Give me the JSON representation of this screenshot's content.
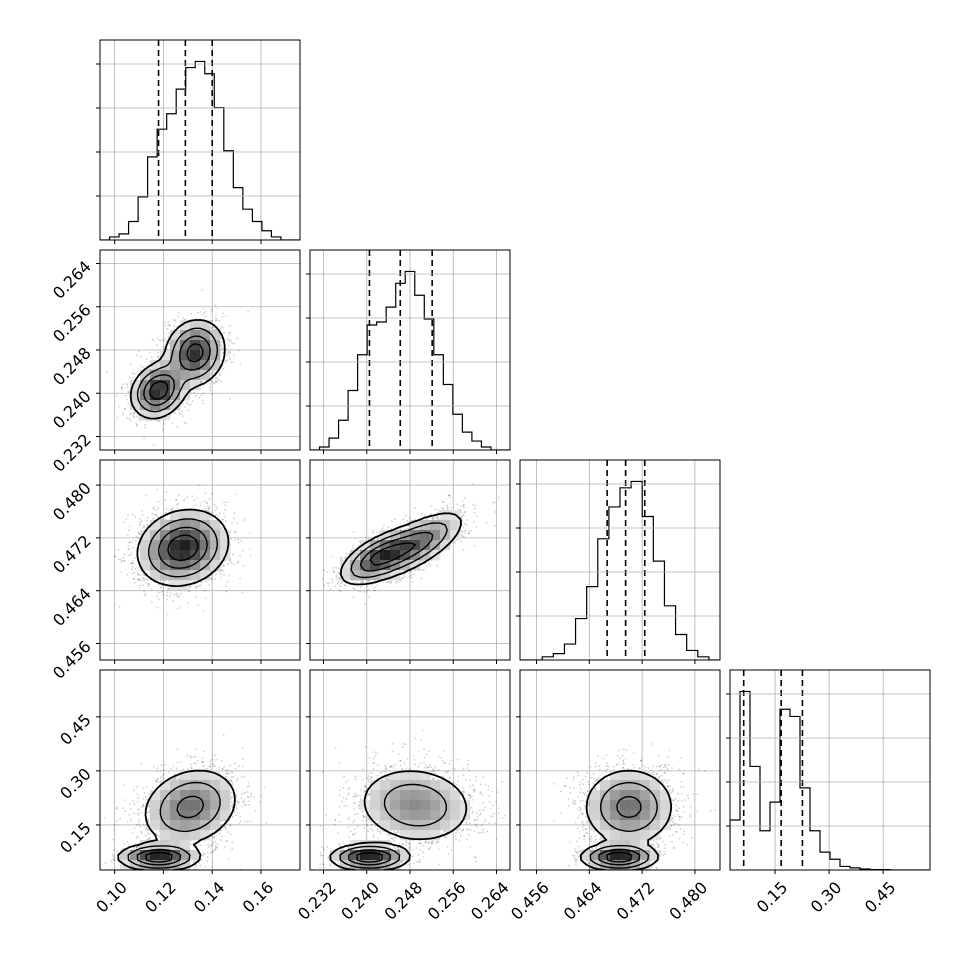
{
  "chart_data": {
    "type": "corner",
    "grid": true,
    "parameters": [
      {
        "axis_ticks": [
          0.1,
          0.12,
          0.14,
          0.16
        ],
        "tick_labels": [
          "0.10",
          "0.12",
          "0.14",
          "0.16"
        ],
        "range": [
          0.094,
          0.176
        ],
        "quantiles": [
          0.118,
          0.129,
          0.14
        ],
        "histogram": [
          0,
          1,
          2,
          6,
          14,
          27,
          36,
          41,
          49,
          56,
          58,
          54,
          43,
          29,
          17,
          10,
          6,
          3,
          1,
          0,
          0
        ]
      },
      {
        "axis_ticks": [
          0.232,
          0.24,
          0.248,
          0.256,
          0.264
        ],
        "tick_labels": [
          "0.232",
          "0.240",
          "0.248",
          "0.256",
          "0.264"
        ],
        "range": [
          0.2295,
          0.2665
        ],
        "quantiles": [
          0.2405,
          0.2462,
          0.2521
        ],
        "histogram": [
          0,
          1,
          4,
          10,
          20,
          32,
          42,
          43,
          48,
          56,
          60,
          52,
          44,
          32,
          22,
          12,
          6,
          3,
          1,
          0,
          0
        ]
      },
      {
        "axis_ticks": [
          0.456,
          0.464,
          0.472,
          0.48
        ],
        "tick_labels": [
          "0.456",
          "0.464",
          "0.472",
          "0.480"
        ],
        "range": [
          0.4535,
          0.4838
        ],
        "quantiles": [
          0.4667,
          0.4695,
          0.4724
        ],
        "histogram": [
          0,
          0,
          1,
          2,
          5,
          13,
          23,
          38,
          48,
          54,
          56,
          45,
          31,
          17,
          8,
          3,
          1,
          0
        ]
      },
      {
        "axis_ticks": [
          0.15,
          0.3,
          0.45
        ],
        "tick_labels": [
          "0.15",
          "0.30",
          "0.45"
        ],
        "range": [
          0.025,
          0.58
        ],
        "quantiles": [
          0.063,
          0.167,
          0.226
        ],
        "histogram": [
          14,
          50,
          29,
          11,
          19,
          45,
          43,
          23,
          11,
          5,
          3,
          1,
          0.6,
          0.3,
          0.1,
          0.1,
          0,
          0,
          0,
          0
        ]
      }
    ],
    "pairs": [
      {
        "row": 1,
        "col": 0,
        "modes": [
          {
            "x": 0.118,
            "y": 0.2405,
            "sx": 0.0055,
            "sy": 0.0025,
            "r": 0.2,
            "w": 0.45
          },
          {
            "x": 0.133,
            "y": 0.2475,
            "sx": 0.006,
            "sy": 0.003,
            "r": 0.1,
            "w": 0.55
          }
        ]
      },
      {
        "row": 2,
        "col": 0,
        "modes": [
          {
            "x": 0.128,
            "y": 0.4705,
            "sx": 0.009,
            "sy": 0.0028,
            "r": 0.15,
            "w": 1.0
          }
        ]
      },
      {
        "row": 2,
        "col": 1,
        "modes": [
          {
            "x": 0.242,
            "y": 0.469,
            "sx": 0.0035,
            "sy": 0.002,
            "r": 0.6,
            "w": 0.4
          },
          {
            "x": 0.249,
            "y": 0.471,
            "sx": 0.0045,
            "sy": 0.0025,
            "r": 0.7,
            "w": 0.6
          }
        ]
      },
      {
        "row": 3,
        "col": 0,
        "modes": [
          {
            "x": 0.118,
            "y": 0.06,
            "sx": 0.008,
            "sy": 0.018,
            "r": 0.0,
            "w": 0.3
          },
          {
            "x": 0.131,
            "y": 0.2,
            "sx": 0.01,
            "sy": 0.055,
            "r": 0.2,
            "w": 0.7
          }
        ]
      },
      {
        "row": 3,
        "col": 1,
        "modes": [
          {
            "x": 0.2405,
            "y": 0.06,
            "sx": 0.0035,
            "sy": 0.018,
            "r": 0.0,
            "w": 0.3
          },
          {
            "x": 0.249,
            "y": 0.205,
            "sx": 0.0055,
            "sy": 0.055,
            "r": -0.1,
            "w": 0.7
          }
        ]
      },
      {
        "row": 3,
        "col": 2,
        "modes": [
          {
            "x": 0.4685,
            "y": 0.06,
            "sx": 0.0028,
            "sy": 0.018,
            "r": 0.0,
            "w": 0.3
          },
          {
            "x": 0.47,
            "y": 0.2,
            "sx": 0.0035,
            "sy": 0.055,
            "r": 0.0,
            "w": 0.7
          }
        ]
      }
    ]
  }
}
